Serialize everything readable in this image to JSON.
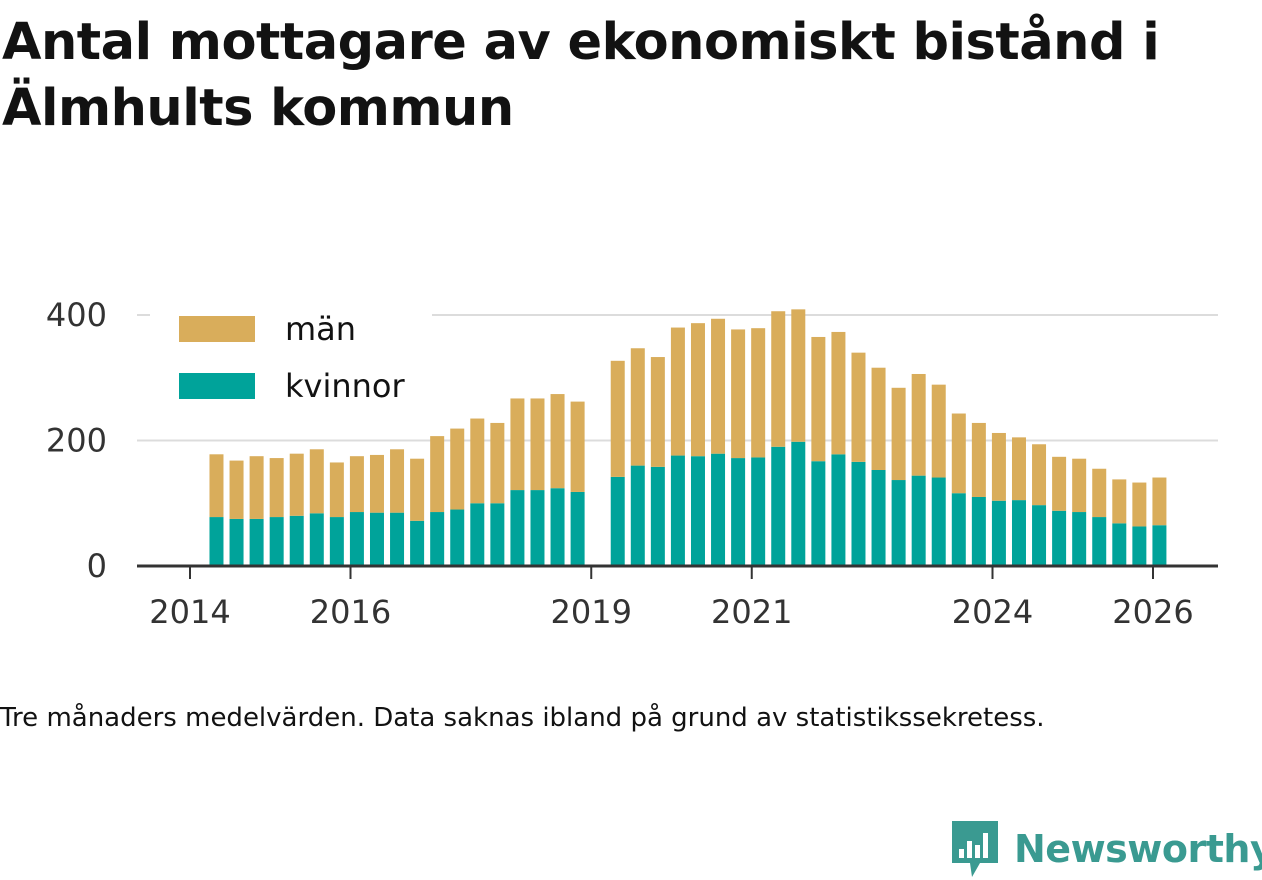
{
  "title": "Antal mottagare av ekonomiskt bistånd i Älmhults kommun",
  "note": "Tre månaders medelvärden. Data saknas ibland på grund av statistikssekretess.",
  "brand": "Newsworthy",
  "colors": {
    "men": "#d9ad5b",
    "women": "#00a39a",
    "grid": "#dcdcdc",
    "axis": "#333333",
    "brand": "#3a9a91"
  },
  "chart_data": {
    "type": "bar",
    "stacked": true,
    "title": "Antal mottagare av ekonomiskt bistånd i Älmhults kommun",
    "xlabel": "",
    "ylabel": "",
    "ylim": [
      0,
      410
    ],
    "yticks": [
      0,
      200,
      400
    ],
    "xlim": [
      2013.67,
      2027.08
    ],
    "xticks": [
      2014,
      2016,
      2019,
      2021,
      2024,
      2026
    ],
    "grid": true,
    "legend": "top-left",
    "x": [
      2014.33,
      2014.58,
      2014.83,
      2015.08,
      2015.33,
      2015.58,
      2015.83,
      2016.08,
      2016.33,
      2016.58,
      2016.83,
      2017.08,
      2017.33,
      2017.58,
      2017.83,
      2018.08,
      2018.33,
      2018.58,
      2018.83,
      2019.33,
      2019.58,
      2019.83,
      2020.08,
      2020.33,
      2020.58,
      2020.83,
      2021.08,
      2021.33,
      2021.58,
      2021.83,
      2022.08,
      2022.33,
      2022.58,
      2022.83,
      2023.08,
      2023.33,
      2023.58,
      2023.83,
      2024.08,
      2024.33,
      2024.58,
      2024.83,
      2025.08,
      2025.33,
      2025.58,
      2025.83,
      2026.08
    ],
    "series": [
      {
        "name": "kvinnor",
        "values": [
          78,
          75,
          75,
          78,
          80,
          84,
          78,
          86,
          85,
          85,
          72,
          86,
          90,
          100,
          100,
          121,
          121,
          124,
          118,
          142,
          160,
          158,
          176,
          175,
          179,
          172,
          173,
          190,
          198,
          167,
          178,
          166,
          153,
          137,
          144,
          141,
          116,
          110,
          104,
          105,
          97,
          88,
          86,
          78,
          68,
          63,
          65
        ]
      },
      {
        "name": "män",
        "values": [
          100,
          93,
          100,
          94,
          99,
          102,
          87,
          89,
          92,
          101,
          99,
          121,
          129,
          135,
          128,
          146,
          146,
          150,
          144,
          185,
          187,
          175,
          204,
          212,
          215,
          205,
          206,
          216,
          211,
          198,
          195,
          174,
          163,
          147,
          162,
          148,
          127,
          118,
          108,
          100,
          97,
          86,
          85,
          77,
          70,
          70,
          76
        ]
      }
    ]
  }
}
